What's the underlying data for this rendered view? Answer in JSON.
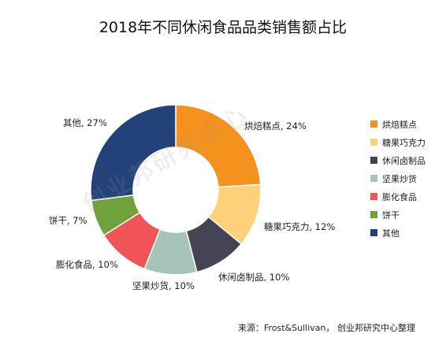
{
  "chart_data": {
    "type": "pie",
    "variant": "donut",
    "title": "2018年不同休闲食品品类销售额占比",
    "categories": [
      "烘焙糕点",
      "糖果巧克力",
      "休闲卤制品",
      "坚果炒货",
      "膨化食品",
      "饼干",
      "其他"
    ],
    "values": [
      24,
      12,
      10,
      10,
      10,
      7,
      27
    ],
    "unit": "%",
    "data_labels": [
      "烘焙糕点, 24%",
      "糖果巧克力, 12%",
      "休闲卤制品, 10%",
      "坚果炒货, 10%",
      "膨化食品, 10%",
      "饼干, 7%",
      "其他, 27%"
    ],
    "colors": [
      "#F5921E",
      "#FDD07A",
      "#444455",
      "#A6C4B7",
      "#F05457",
      "#6FA23A",
      "#23427A"
    ],
    "legend_position": "right"
  },
  "source": "来源：Frost&Sullivan， 创业邦研究中心整理",
  "watermark": "创业邦研究中心"
}
